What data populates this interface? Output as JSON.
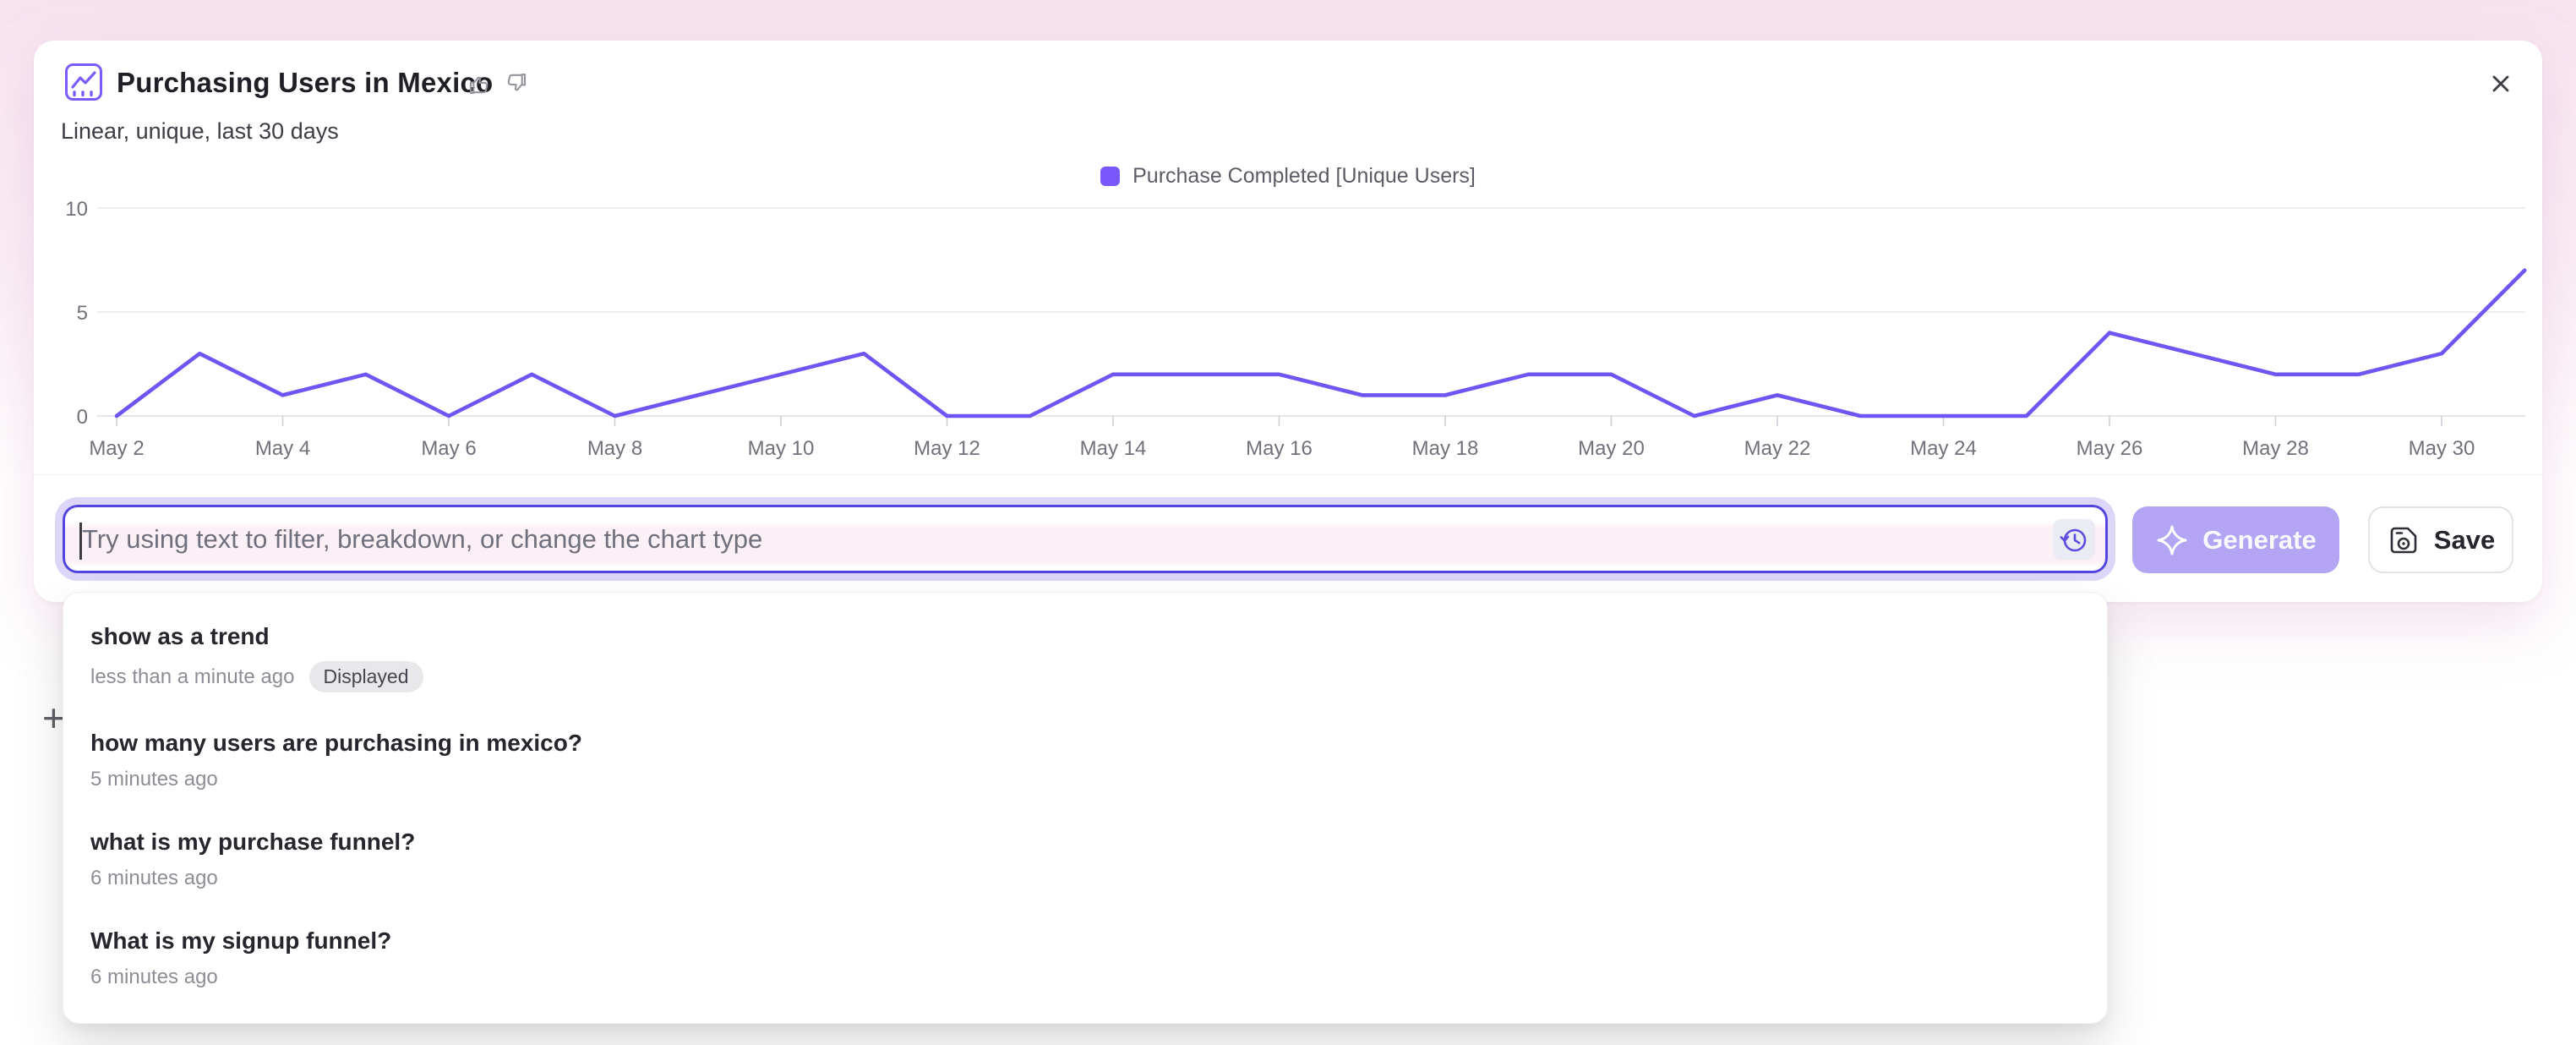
{
  "header": {
    "title": "Purchasing Users in Mexico",
    "subtitle": "Linear, unique, last 30 days"
  },
  "legend": {
    "label": "Purchase Completed [Unique Users]",
    "swatch_color": "#7a57fa"
  },
  "chart_data": {
    "type": "line",
    "title": "Purchasing Users in Mexico",
    "xlabel": "",
    "ylabel": "",
    "dates": [
      "May 2",
      "May 3",
      "May 4",
      "May 5",
      "May 6",
      "May 7",
      "May 8",
      "May 9",
      "May 10",
      "May 11",
      "May 12",
      "May 13",
      "May 14",
      "May 15",
      "May 16",
      "May 17",
      "May 18",
      "May 19",
      "May 20",
      "May 21",
      "May 22",
      "May 23",
      "May 24",
      "May 25",
      "May 26",
      "May 27",
      "May 28",
      "May 29",
      "May 30",
      "May 31"
    ],
    "series": [
      {
        "name": "Purchase Completed [Unique Users]",
        "color": "#6f56f4",
        "values": [
          0,
          3,
          1,
          2,
          0,
          2,
          0,
          1,
          2,
          3,
          0,
          0,
          2,
          2,
          2,
          1,
          1,
          2,
          2,
          0,
          1,
          0,
          0,
          0,
          4,
          3,
          2,
          2,
          3,
          7
        ]
      }
    ],
    "y_ticks": [
      0,
      5,
      10
    ],
    "ylim": [
      0,
      10
    ],
    "x_tick_every": 2,
    "grid": "horizontal",
    "legend_position": "top-center"
  },
  "ai_input": {
    "placeholder": "Try using text to filter, breakdown, or change the chart type"
  },
  "buttons": {
    "generate": "Generate",
    "save": "Save"
  },
  "history": {
    "items": [
      {
        "query": "show as a trend",
        "time": "less than a minute ago",
        "badge": "Displayed"
      },
      {
        "query": "how many users are purchasing in mexico?",
        "time": "5 minutes ago"
      },
      {
        "query": "what is my purchase funnel?",
        "time": "6 minutes ago"
      },
      {
        "query": "What is my signup funnel?",
        "time": "6 minutes ago"
      }
    ]
  },
  "background": {
    "plus_glyph": "+"
  },
  "colors": {
    "accent_purple": "#6f56f4",
    "generate_bg": "#b3a5f3",
    "input_border": "#5446dd",
    "input_glow": "#ddd6f8",
    "halo_pink": "#f7e2ee",
    "grid_line": "#e9e9ee",
    "axis_label": "#71717b"
  }
}
